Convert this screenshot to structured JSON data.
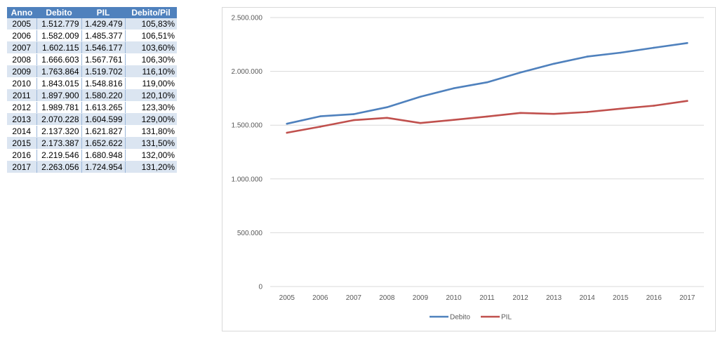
{
  "table": {
    "headers": [
      "Anno",
      "Debito",
      "PIL",
      "Debito/Pil"
    ],
    "rows": [
      [
        "2005",
        "1.512.779",
        "1.429.479",
        "105,83%"
      ],
      [
        "2006",
        "1.582.009",
        "1.485.377",
        "106,51%"
      ],
      [
        "2007",
        "1.602.115",
        "1.546.177",
        "103,60%"
      ],
      [
        "2008",
        "1.666.603",
        "1.567.761",
        "106,30%"
      ],
      [
        "2009",
        "1.763.864",
        "1.519.702",
        "116,10%"
      ],
      [
        "2010",
        "1.843.015",
        "1.548.816",
        "119,00%"
      ],
      [
        "2011",
        "1.897.900",
        "1.580.220",
        "120,10%"
      ],
      [
        "2012",
        "1.989.781",
        "1.613.265",
        "123,30%"
      ],
      [
        "2013",
        "2.070.228",
        "1.604.599",
        "129,00%"
      ],
      [
        "2014",
        "2.137.320",
        "1.621.827",
        "131,80%"
      ],
      [
        "2015",
        "2.173.387",
        "1.652.622",
        "131,50%"
      ],
      [
        "2016",
        "2.219.546",
        "1.680.948",
        "132,00%"
      ],
      [
        "2017",
        "2.263.056",
        "1.724.954",
        "131,20%"
      ]
    ],
    "colors": {
      "header_bg": "#4f81bd",
      "header_text": "#ffffff",
      "band": "#dbe5f1"
    }
  },
  "chart_data": {
    "type": "line",
    "categories": [
      "2005",
      "2006",
      "2007",
      "2008",
      "2009",
      "2010",
      "2011",
      "2012",
      "2013",
      "2014",
      "2015",
      "2016",
      "2017"
    ],
    "series": [
      {
        "name": "Debito",
        "color": "#4f81bd",
        "values": [
          1512779,
          1582009,
          1602115,
          1666603,
          1763864,
          1843015,
          1897900,
          1989781,
          2070228,
          2137320,
          2173387,
          2219546,
          2263056
        ]
      },
      {
        "name": "PIL",
        "color": "#c0504d",
        "values": [
          1429479,
          1485377,
          1546177,
          1567761,
          1519702,
          1548816,
          1580220,
          1613265,
          1604599,
          1621827,
          1652622,
          1680948,
          1724954
        ]
      }
    ],
    "ylim": [
      0,
      2500000
    ],
    "yticks": [
      0,
      500000,
      1000000,
      1500000,
      2000000,
      2500000
    ],
    "ytick_labels": [
      "0",
      "500.000",
      "1.000.000",
      "1.500.000",
      "2.000.000",
      "2.500.000"
    ],
    "grid": true,
    "legend": "bottom",
    "title": "",
    "xlabel": "",
    "ylabel": ""
  }
}
